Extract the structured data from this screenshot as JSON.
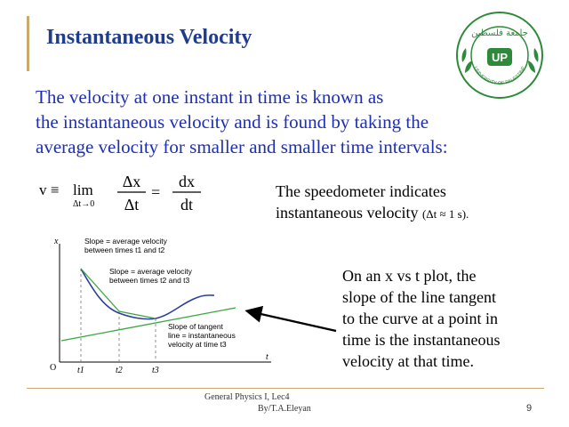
{
  "title": "Instantaneous Velocity",
  "logo": {
    "ring_text": "UNIVERSITY OF PALESTINE",
    "arabic_text": "جامعة فلسطين",
    "initials": "UP"
  },
  "intro": {
    "line1": "The velocity at one instant in time is known as",
    "line2": "the instantaneous velocity and is found by taking the",
    "line3": "average velocity for smaller and smaller time intervals:"
  },
  "formula": {
    "lhs": "v ≡",
    "lim": "lim",
    "lim_sub": "Δt→0",
    "frac1_num": "Δx",
    "frac1_den": "Δt",
    "equals": "=",
    "frac2_num": "dx",
    "frac2_den": "dt"
  },
  "speedometer": {
    "line1": "The speedometer indicates",
    "line2": "instantaneous velocity",
    "note": "(Δt ≈ 1 s)."
  },
  "graph": {
    "y_axis": "x",
    "x_axis": "t",
    "origin": "O",
    "ticks": [
      "t1",
      "t2",
      "t3"
    ],
    "ann1_line1": "Slope = average velocity",
    "ann1_line2": "between times t1 and t2",
    "ann2_line1": "Slope = average velocity",
    "ann2_line2": "between times t2 and t3",
    "ann3_line1": "Slope of tangent",
    "ann3_line2": "line = instantaneous",
    "ann3_line3": "velocity at time t3"
  },
  "explanation": {
    "line1": "On an x vs t plot, the",
    "line2": "slope  of the line tangent",
    "line3": "to the curve at a point in",
    "line4": "time is the instantaneous",
    "line5": "velocity at that time."
  },
  "footer": {
    "line1": "General Physics I, Lec4",
    "line2": "By/T.A.Eleyan",
    "page": "9"
  },
  "colors": {
    "title": "#1f3c8f",
    "intro": "#1e2fb5",
    "curve": "#2a3f9c",
    "secant": "#3aa640",
    "rule": "#c9a96e"
  }
}
